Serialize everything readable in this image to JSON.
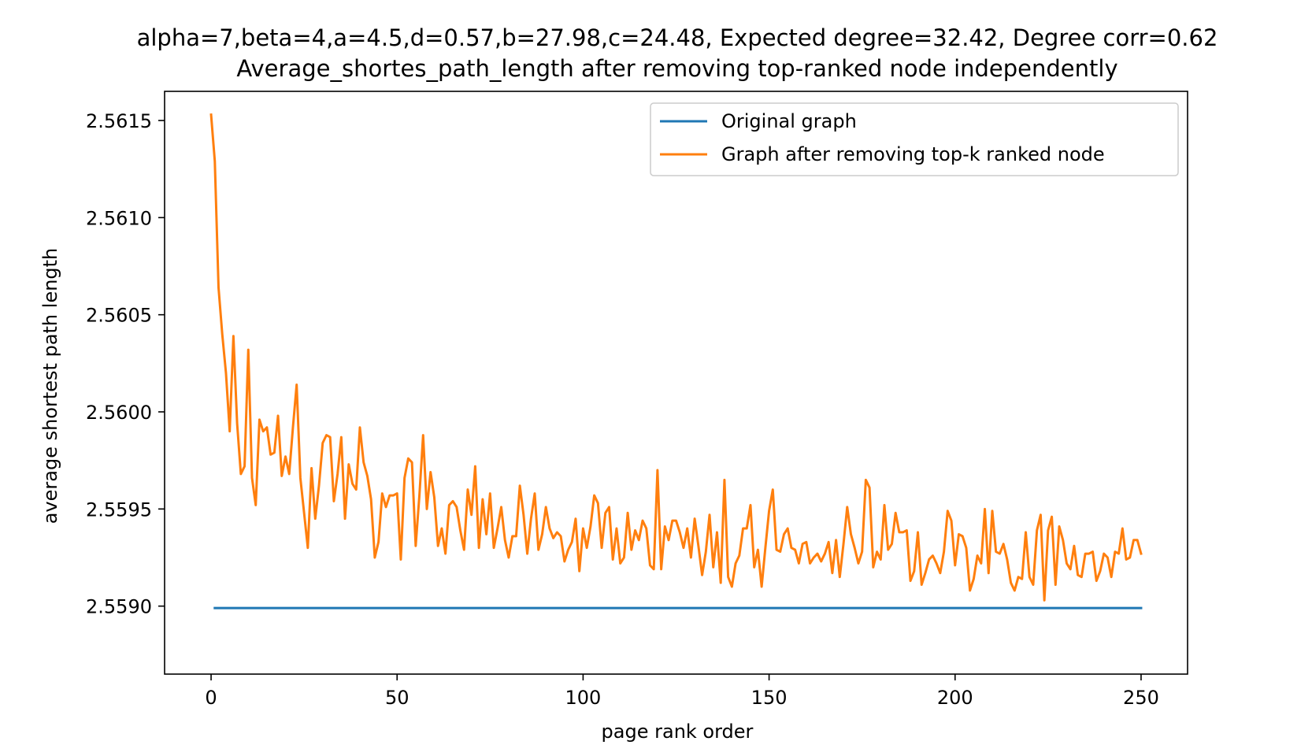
{
  "chart_data": {
    "type": "line",
    "title_line1": "alpha=7,beta=4,a=4.5,d=0.57,b=27.98,c=24.48, Expected degree=32.42, Degree corr=0.62",
    "title_line2": "Average_shortes_path_length after removing top-ranked node independently",
    "xlabel": "page rank order",
    "ylabel": "average shortest path length",
    "xlim": [
      -12.5,
      262.5
    ],
    "ylim": [
      2.55865,
      2.56165
    ],
    "xticks": [
      0,
      50,
      100,
      150,
      200,
      250
    ],
    "xtick_labels": [
      "0",
      "50",
      "100",
      "150",
      "200",
      "250"
    ],
    "yticks": [
      2.559,
      2.5595,
      2.56,
      2.5605,
      2.561,
      2.5615
    ],
    "ytick_labels": [
      "2.5590",
      "2.5595",
      "2.5600",
      "2.5605",
      "2.5610",
      "2.5615"
    ],
    "grid": false,
    "legend_position": "top-right",
    "series": [
      {
        "name": "Original graph",
        "color": "#1f77b4",
        "x": [
          1,
          250
        ],
        "y": [
          2.55899,
          2.55899
        ]
      },
      {
        "name": "Graph after removing top-k ranked node",
        "color": "#ff7f0e",
        "x": [
          0,
          1,
          2,
          3,
          4,
          5,
          6,
          7,
          8,
          9,
          10,
          11,
          12,
          13,
          14,
          15,
          16,
          17,
          18,
          19,
          20,
          21,
          22,
          23,
          24,
          25,
          26,
          27,
          28,
          29,
          30,
          31,
          32,
          33,
          34,
          35,
          36,
          37,
          38,
          39,
          40,
          41,
          42,
          43,
          44,
          45,
          46,
          47,
          48,
          49,
          50,
          51,
          52,
          53,
          54,
          55,
          56,
          57,
          58,
          59,
          60,
          61,
          62,
          63,
          64,
          65,
          66,
          67,
          68,
          69,
          70,
          71,
          72,
          73,
          74,
          75,
          76,
          77,
          78,
          79,
          80,
          81,
          82,
          83,
          84,
          85,
          86,
          87,
          88,
          89,
          90,
          91,
          92,
          93,
          94,
          95,
          96,
          97,
          98,
          99,
          100,
          101,
          102,
          103,
          104,
          105,
          106,
          107,
          108,
          109,
          110,
          111,
          112,
          113,
          114,
          115,
          116,
          117,
          118,
          119,
          120,
          121,
          122,
          123,
          124,
          125,
          126,
          127,
          128,
          129,
          130,
          131,
          132,
          133,
          134,
          135,
          136,
          137,
          138,
          139,
          140,
          141,
          142,
          143,
          144,
          145,
          146,
          147,
          148,
          149,
          150,
          151,
          152,
          153,
          154,
          155,
          156,
          157,
          158,
          159,
          160,
          161,
          162,
          163,
          164,
          165,
          166,
          167,
          168,
          169,
          170,
          171,
          172,
          173,
          174,
          175,
          176,
          177,
          178,
          179,
          180,
          181,
          182,
          183,
          184,
          185,
          186,
          187,
          188,
          189,
          190,
          191,
          192,
          193,
          194,
          195,
          196,
          197,
          198,
          199,
          200,
          201,
          202,
          203,
          204,
          205,
          206,
          207,
          208,
          209,
          210,
          211,
          212,
          213,
          214,
          215,
          216,
          217,
          218,
          219,
          220,
          221,
          222,
          223,
          224,
          225,
          226,
          227,
          228,
          229,
          230,
          231,
          232,
          233,
          234,
          235,
          236,
          237,
          238,
          239,
          240,
          241,
          242,
          243,
          244,
          245,
          246,
          247,
          248,
          249,
          250
        ],
        "y": [
          2.56153,
          2.56129,
          2.56064,
          2.5604,
          2.5602,
          2.5599,
          2.56039,
          2.55994,
          2.55968,
          2.55972,
          2.56032,
          2.55966,
          2.55952,
          2.55996,
          2.5599,
          2.55992,
          2.55978,
          2.55979,
          2.55998,
          2.55967,
          2.55977,
          2.55968,
          2.55992,
          2.56014,
          2.55966,
          2.55948,
          2.5593,
          2.55971,
          2.55945,
          2.55962,
          2.55984,
          2.55988,
          2.55987,
          2.55954,
          2.55968,
          2.55987,
          2.55945,
          2.55973,
          2.55963,
          2.5596,
          2.55992,
          2.55974,
          2.55967,
          2.55955,
          2.55925,
          2.55933,
          2.55958,
          2.55951,
          2.55957,
          2.55957,
          2.55958,
          2.55924,
          2.55966,
          2.55976,
          2.55974,
          2.55931,
          2.55957,
          2.55988,
          2.5595,
          2.55969,
          2.55956,
          2.55931,
          2.5594,
          2.55927,
          2.55952,
          2.55954,
          2.55951,
          2.55939,
          2.55929,
          2.5596,
          2.55947,
          2.55972,
          2.5593,
          2.55955,
          2.55937,
          2.55958,
          2.5593,
          2.5594,
          2.55951,
          2.55934,
          2.55925,
          2.55936,
          2.55936,
          2.55962,
          2.55947,
          2.55927,
          2.55945,
          2.55958,
          2.55929,
          2.55937,
          2.55951,
          2.5594,
          2.55935,
          2.55938,
          2.55936,
          2.55923,
          2.55929,
          2.55933,
          2.55945,
          2.55918,
          2.5594,
          2.5593,
          2.55941,
          2.55957,
          2.55953,
          2.5593,
          2.55948,
          2.55951,
          2.55924,
          2.5594,
          2.55922,
          2.55925,
          2.55948,
          2.55929,
          2.55939,
          2.55934,
          2.55944,
          2.5594,
          2.55921,
          2.55919,
          2.5597,
          2.55919,
          2.55941,
          2.55934,
          2.55944,
          2.55944,
          2.55938,
          2.5593,
          2.5594,
          2.55925,
          2.55945,
          2.55931,
          2.55916,
          2.55928,
          2.55947,
          2.5592,
          2.55938,
          2.55912,
          2.55965,
          2.55915,
          2.5591,
          2.55922,
          2.55926,
          2.5594,
          2.5594,
          2.55952,
          2.5592,
          2.55929,
          2.5591,
          2.5593,
          2.55949,
          2.5596,
          2.55929,
          2.55928,
          2.55937,
          2.5594,
          2.5593,
          2.55929,
          2.55922,
          2.55932,
          2.55933,
          2.55922,
          2.55925,
          2.55927,
          2.55923,
          2.55927,
          2.55933,
          2.55917,
          2.55934,
          2.55915,
          2.55932,
          2.55951,
          2.55937,
          2.5593,
          2.55922,
          2.55928,
          2.55965,
          2.55961,
          2.5592,
          2.55928,
          2.55924,
          2.55952,
          2.55929,
          2.55932,
          2.55948,
          2.55938,
          2.55938,
          2.55939,
          2.55913,
          2.55918,
          2.55938,
          2.55911,
          2.55917,
          2.55924,
          2.55926,
          2.55922,
          2.55917,
          2.55928,
          2.55949,
          2.55944,
          2.55921,
          2.55937,
          2.55936,
          2.5593,
          2.55908,
          2.55914,
          2.55926,
          2.55922,
          2.5595,
          2.55917,
          2.55949,
          2.55928,
          2.55927,
          2.55932,
          2.55924,
          2.55912,
          2.55908,
          2.55915,
          2.55914,
          2.55938,
          2.55915,
          2.55911,
          2.55939,
          2.55947,
          2.55903,
          2.55939,
          2.55946,
          2.55911,
          2.55941,
          2.55934,
          2.55922,
          2.55919,
          2.55931,
          2.55916,
          2.55915,
          2.55927,
          2.55927,
          2.55928,
          2.55913,
          2.55918,
          2.55927,
          2.55925,
          2.55915,
          2.55928,
          2.55927,
          2.5594,
          2.55924,
          2.55925,
          2.55934,
          2.55934,
          2.55927
        ]
      }
    ]
  }
}
